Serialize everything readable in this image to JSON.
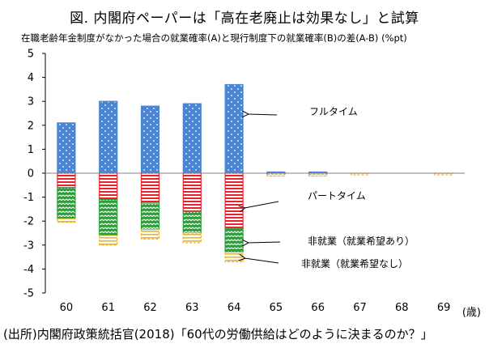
{
  "header": {
    "title": "図.  内閣府ペーパーは「高在老廃止は効果なし」と試算",
    "subtitle": "在職老齢年金制度がなかった場合の就業確率(A)と現行制度下の就業確率(B)の差(A-B) (%pt)"
  },
  "footer": {
    "source": "(出所)内閣府政策統括官(2018)「60代の労働供給はどのように決まるのか？」"
  },
  "chart_data": {
    "type": "bar",
    "stacked": true,
    "categories": [
      "60",
      "61",
      "62",
      "63",
      "64",
      "65",
      "66",
      "67",
      "68",
      "69"
    ],
    "xunit": "(歳)",
    "ylim": [
      -5,
      5
    ],
    "yticks": [
      5,
      4,
      3,
      2,
      1,
      0,
      -1,
      -2,
      -3,
      -4,
      -5
    ],
    "grid": false,
    "series": [
      {
        "name": "フルタイム",
        "color": "#4a86d4",
        "values": [
          2.1,
          3.0,
          2.8,
          2.9,
          3.7,
          0.05,
          0.05,
          0.0,
          0.0,
          0.0
        ]
      },
      {
        "name": "パートタイム",
        "color": "#e8222a",
        "values": [
          -0.6,
          -1.1,
          -1.25,
          -1.6,
          -2.3,
          -0.05,
          -0.05,
          0.0,
          0.0,
          0.0
        ]
      },
      {
        "name": "非就業（就業希望あり）",
        "color": "#2e9e3a",
        "values": [
          -1.3,
          -1.5,
          -1.1,
          -0.9,
          -1.0,
          0.0,
          0.0,
          0.0,
          0.0,
          0.0
        ]
      },
      {
        "name": "非就業（就業希望なし）",
        "color": "#f2b418",
        "values": [
          -0.15,
          -0.4,
          -0.4,
          -0.4,
          -0.4,
          -0.05,
          -0.05,
          -0.05,
          0.0,
          -0.05
        ]
      }
    ],
    "annotations": [
      {
        "text": "フルタイム",
        "series": 0
      },
      {
        "text": "パートタイム",
        "series": 1
      },
      {
        "text": "非就業（就業希望あり）",
        "series": 2
      },
      {
        "text": "非就業（就業希望なし）",
        "series": 3
      }
    ]
  }
}
